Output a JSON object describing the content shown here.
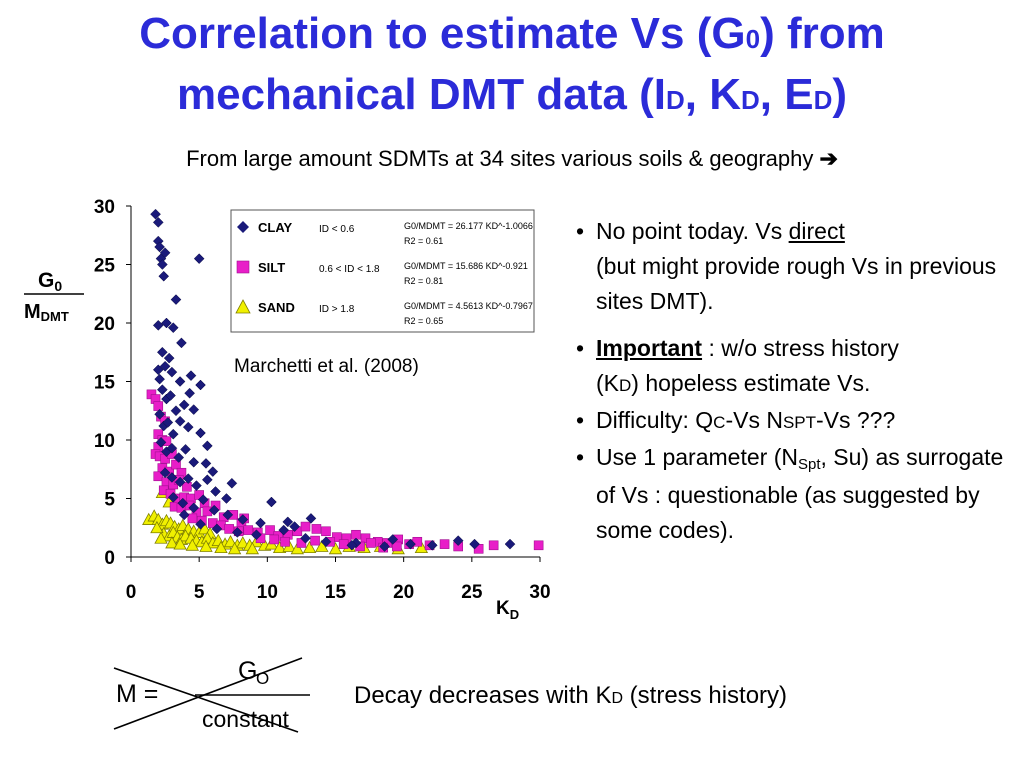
{
  "title": {
    "line1_pre": "Correlation to estimate Vs (G",
    "line1_sub": "0",
    "line1_post": ") from",
    "line2_a": "mechanical DMT data  (I",
    "line2_sub1": "D",
    "line2_b": ", K",
    "line2_sub2": "D",
    "line2_c": ", E",
    "line2_sub3": "D",
    "line2_d": ")"
  },
  "subtitle": {
    "text": "From large amount SDMTs at 34 sites various soils & geography",
    "arrow": "➔"
  },
  "chart_data": {
    "type": "scatter",
    "xlabel": "KD",
    "ylabel_top": "G0",
    "ylabel_bottom": "MDMT",
    "xlim": [
      0,
      30
    ],
    "ylim": [
      0,
      30
    ],
    "xticks": [
      0,
      5,
      10,
      15,
      20,
      25,
      30
    ],
    "yticks": [
      0,
      5,
      10,
      15,
      20,
      25,
      30
    ],
    "annotation": "Marchetti et al. (2008)",
    "legend_position": "top-right",
    "series": [
      {
        "name": "CLAY",
        "range": "ID < 0.6",
        "equation": "G0/MDMT = 26.177 KD^-1.0066",
        "r2": "R2 = 0.61",
        "color": "#1a1a7a",
        "marker": "diamond",
        "points": [
          [
            1.8,
            29.3
          ],
          [
            2.0,
            28.6
          ],
          [
            2.0,
            27
          ],
          [
            2.1,
            26.5
          ],
          [
            2.2,
            25.5
          ],
          [
            2.3,
            25
          ],
          [
            2.5,
            26
          ],
          [
            2.4,
            24
          ],
          [
            5.0,
            25.5
          ],
          [
            3.3,
            22
          ],
          [
            2.0,
            19.8
          ],
          [
            2.6,
            20
          ],
          [
            3.1,
            19.6
          ],
          [
            2.3,
            17.5
          ],
          [
            2.8,
            17
          ],
          [
            3.7,
            18.3
          ],
          [
            2.0,
            16
          ],
          [
            2.1,
            15.2
          ],
          [
            2.5,
            16.3
          ],
          [
            3.0,
            15.8
          ],
          [
            3.6,
            15
          ],
          [
            4.4,
            15.5
          ],
          [
            5.1,
            14.7
          ],
          [
            2.3,
            14.3
          ],
          [
            2.6,
            13.5
          ],
          [
            2.9,
            13.8
          ],
          [
            3.3,
            12.5
          ],
          [
            3.9,
            13
          ],
          [
            4.3,
            14
          ],
          [
            4.6,
            12.6
          ],
          [
            2.1,
            12.2
          ],
          [
            2.4,
            11.2
          ],
          [
            2.7,
            11.5
          ],
          [
            3.1,
            10.5
          ],
          [
            3.6,
            11.6
          ],
          [
            4.2,
            11.1
          ],
          [
            5.1,
            10.6
          ],
          [
            5.6,
            9.5
          ],
          [
            2.2,
            9.8
          ],
          [
            2.6,
            9.0
          ],
          [
            3.0,
            9.3
          ],
          [
            3.5,
            8.5
          ],
          [
            4.0,
            9.2
          ],
          [
            4.6,
            8.1
          ],
          [
            5.5,
            8.0
          ],
          [
            6.0,
            7.3
          ],
          [
            2.5,
            7.2
          ],
          [
            3.0,
            6.8
          ],
          [
            3.6,
            6.4
          ],
          [
            4.2,
            6.7
          ],
          [
            4.8,
            6.1
          ],
          [
            5.6,
            6.6
          ],
          [
            6.2,
            5.6
          ],
          [
            7.0,
            5.0
          ],
          [
            7.4,
            6.3
          ],
          [
            3.1,
            5.1
          ],
          [
            3.8,
            4.6
          ],
          [
            4.6,
            4.2
          ],
          [
            5.3,
            4.9
          ],
          [
            6.1,
            4.0
          ],
          [
            7.1,
            3.6
          ],
          [
            8.2,
            3.2
          ],
          [
            9.5,
            2.9
          ],
          [
            10.3,
            4.7
          ],
          [
            11.2,
            2.3
          ],
          [
            12.0,
            2.6
          ],
          [
            11.5,
            3.0
          ],
          [
            13.2,
            3.3
          ],
          [
            16.5,
            1.2
          ],
          [
            18.6,
            0.9
          ],
          [
            19.2,
            1.5
          ],
          [
            20.5,
            1.1
          ],
          [
            22.1,
            1.0
          ],
          [
            24.0,
            1.4
          ],
          [
            25.2,
            1.1
          ],
          [
            27.8,
            1.1
          ],
          [
            3.9,
            3.6
          ],
          [
            5.1,
            2.8
          ],
          [
            6.3,
            2.4
          ],
          [
            7.8,
            2.1
          ],
          [
            9.2,
            1.9
          ],
          [
            12.8,
            1.6
          ],
          [
            14.3,
            1.3
          ],
          [
            16.2,
            1.0
          ]
        ]
      },
      {
        "name": "SILT",
        "range": "0.6 < ID < 1.8",
        "equation": "G0/MDMT = 15.686 KD^-0.921",
        "r2": "R2 = 0.81",
        "color": "#e81ec8",
        "marker": "square",
        "points": [
          [
            1.5,
            13.9
          ],
          [
            1.8,
            13.5
          ],
          [
            2.0,
            12.9
          ],
          [
            2.2,
            12.0
          ],
          [
            2.5,
            11.6
          ],
          [
            2.0,
            10.5
          ],
          [
            2.3,
            10.0
          ],
          [
            2.6,
            9.9
          ],
          [
            2.0,
            9.4
          ],
          [
            1.8,
            8.8
          ],
          [
            2.1,
            8.6
          ],
          [
            2.5,
            8.4
          ],
          [
            3.0,
            8.8
          ],
          [
            2.3,
            7.6
          ],
          [
            2.8,
            7.3
          ],
          [
            3.3,
            7.9
          ],
          [
            3.7,
            7.2
          ],
          [
            2.0,
            6.9
          ],
          [
            2.6,
            6.4
          ],
          [
            3.1,
            6.2
          ],
          [
            3.5,
            6.6
          ],
          [
            4.1,
            6.0
          ],
          [
            2.4,
            5.7
          ],
          [
            2.9,
            5.4
          ],
          [
            3.4,
            5.0
          ],
          [
            3.9,
            5.1
          ],
          [
            4.4,
            5.0
          ],
          [
            5.0,
            5.3
          ],
          [
            5.4,
            4.6
          ],
          [
            3.2,
            4.3
          ],
          [
            3.7,
            4.2
          ],
          [
            4.3,
            4.4
          ],
          [
            4.8,
            3.8
          ],
          [
            5.6,
            3.9
          ],
          [
            6.2,
            4.4
          ],
          [
            6.8,
            3.4
          ],
          [
            7.5,
            3.6
          ],
          [
            8.1,
            2.9
          ],
          [
            8.3,
            3.3
          ],
          [
            4.5,
            3.3
          ],
          [
            5.2,
            3.1
          ],
          [
            6.0,
            2.9
          ],
          [
            6.6,
            2.7
          ],
          [
            7.2,
            2.4
          ],
          [
            7.9,
            2.2
          ],
          [
            8.6,
            2.3
          ],
          [
            9.3,
            2.1
          ],
          [
            10.2,
            2.3
          ],
          [
            10.8,
            1.8
          ],
          [
            11.5,
            1.9
          ],
          [
            12.2,
            2.2
          ],
          [
            12.8,
            2.6
          ],
          [
            13.6,
            2.4
          ],
          [
            14.3,
            2.2
          ],
          [
            15.1,
            1.7
          ],
          [
            15.8,
            1.6
          ],
          [
            16.5,
            1.9
          ],
          [
            17.2,
            1.6
          ],
          [
            18.1,
            1.3
          ],
          [
            18.8,
            1.2
          ],
          [
            19.6,
            1.5
          ],
          [
            20.4,
            1.1
          ],
          [
            21.0,
            1.3
          ],
          [
            21.9,
            1.0
          ],
          [
            23.0,
            1.1
          ],
          [
            24.0,
            0.9
          ],
          [
            25.5,
            0.7
          ],
          [
            26.6,
            1.0
          ],
          [
            29.9,
            1.0
          ],
          [
            9.5,
            1.6
          ],
          [
            10.5,
            1.5
          ],
          [
            11.3,
            1.3
          ],
          [
            12.5,
            1.2
          ],
          [
            13.5,
            1.4
          ],
          [
            14.6,
            1.3
          ],
          [
            15.6,
            1.1
          ],
          [
            16.8,
            0.9
          ],
          [
            17.6,
            1.2
          ],
          [
            18.5,
            0.8
          ],
          [
            19.5,
            0.9
          ]
        ]
      },
      {
        "name": "SAND",
        "range": "ID > 1.8",
        "equation": "G0/MDMT = 4.5613 KD^-0.7967",
        "r2": "R2 = 0.65",
        "color": "#f0f000",
        "marker": "triangle",
        "points": [
          [
            2.3,
            5.5
          ],
          [
            2.8,
            4.7
          ],
          [
            1.3,
            3.2
          ],
          [
            1.7,
            3.5
          ],
          [
            2.0,
            3.2
          ],
          [
            2.3,
            2.8
          ],
          [
            2.6,
            3.1
          ],
          [
            2.9,
            2.9
          ],
          [
            3.2,
            2.6
          ],
          [
            3.5,
            2.4
          ],
          [
            3.8,
            2.7
          ],
          [
            4.2,
            2.4
          ],
          [
            4.6,
            2.2
          ],
          [
            5.0,
            2.1
          ],
          [
            5.4,
            2.4
          ],
          [
            5.8,
            2.0
          ],
          [
            2.4,
            2.0
          ],
          [
            2.8,
            1.8
          ],
          [
            3.1,
            2.1
          ],
          [
            3.4,
            1.7
          ],
          [
            3.7,
            1.5
          ],
          [
            4.0,
            1.8
          ],
          [
            4.4,
            1.6
          ],
          [
            4.8,
            1.4
          ],
          [
            5.2,
            1.3
          ],
          [
            5.6,
            1.6
          ],
          [
            6.0,
            1.2
          ],
          [
            6.4,
            1.4
          ],
          [
            6.9,
            1.1
          ],
          [
            7.3,
            1.3
          ],
          [
            7.8,
            1.0
          ],
          [
            8.2,
            1.2
          ],
          [
            8.7,
            1.0
          ],
          [
            9.2,
            1.3
          ],
          [
            9.8,
            1.0
          ],
          [
            10.3,
            1.1
          ],
          [
            10.9,
            0.8
          ],
          [
            11.6,
            0.9
          ],
          [
            12.2,
            0.7
          ],
          [
            13.1,
            0.8
          ],
          [
            14.0,
            0.9
          ],
          [
            15.0,
            0.7
          ],
          [
            16.0,
            0.9
          ],
          [
            17.1,
            0.8
          ],
          [
            18.3,
            0.9
          ],
          [
            19.6,
            0.7
          ],
          [
            21.3,
            0.8
          ],
          [
            1.9,
            2.5
          ],
          [
            2.2,
            1.6
          ],
          [
            3.0,
            1.2
          ],
          [
            3.6,
            1.1
          ],
          [
            4.5,
            1.0
          ],
          [
            5.5,
            0.9
          ],
          [
            6.6,
            0.8
          ],
          [
            7.6,
            0.7
          ],
          [
            8.9,
            0.7
          ]
        ]
      }
    ]
  },
  "bullets": {
    "b1_dot": "•",
    "b1_text_a": "No point today. Vs ",
    "b1_text_link": "direct",
    "b1_text_b": "(but might provide rough Vs in previous sites DMT).",
    "b2_dot": "•",
    "b2_bold": "Important",
    "b2_text_a": " : w/o stress history",
    "b2_text_b1": "(K",
    "b2_text_b_sub": "D",
    "b2_text_b2": ") hopeless estimate Vs.",
    "b3_dot": "•",
    "b3_a": "Difficulty: Q",
    "b3_a_small": "C",
    "b3_b": "-Vs   N",
    "b3_b_small": "SPT",
    "b3_c": "-Vs ???",
    "b4_dot": "•",
    "b4_a": "Use 1 parameter (N",
    "b4_sub": "Spt",
    "b4_b": ", Su) as surrogate of Vs : questionable (as suggested by some codes)."
  },
  "formula": {
    "lhs": "M =",
    "num_letter": "G",
    "num_sub": "O",
    "den": "constant"
  },
  "decay": {
    "text_a": "Decay decreases with K",
    "sub": "D",
    "text_b": " (stress history)"
  }
}
